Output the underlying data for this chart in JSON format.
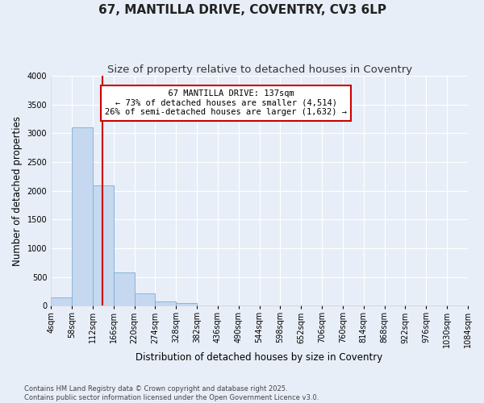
{
  "title_line1": "67, MANTILLA DRIVE, COVENTRY, CV3 6LP",
  "title_line2": "Size of property relative to detached houses in Coventry",
  "xlabel": "Distribution of detached houses by size in Coventry",
  "ylabel": "Number of detached properties",
  "annotation_line1": "67 MANTILLA DRIVE: 137sqm",
  "annotation_line2": "← 73% of detached houses are smaller (4,514)",
  "annotation_line3": "26% of semi-detached houses are larger (1,632) →",
  "bar_edges": [
    4,
    58,
    112,
    166,
    220,
    274,
    328,
    382,
    436,
    490,
    544,
    598,
    652,
    706,
    760,
    814,
    868,
    922,
    976,
    1030,
    1084
  ],
  "bar_heights": [
    150,
    3100,
    2090,
    580,
    210,
    80,
    50,
    0,
    0,
    0,
    0,
    0,
    0,
    0,
    0,
    0,
    0,
    0,
    0,
    0
  ],
  "bar_color": "#c5d8f0",
  "bar_edge_color": "#7aadd4",
  "vline_color": "#cc0000",
  "vline_x": 137,
  "ylim": [
    0,
    4000
  ],
  "yticks": [
    0,
    500,
    1000,
    1500,
    2000,
    2500,
    3000,
    3500,
    4000
  ],
  "background_color": "#e8eef8",
  "plot_bg_color": "#e8eef8",
  "grid_color": "#ffffff",
  "footer": "Contains HM Land Registry data © Crown copyright and database right 2025.\nContains public sector information licensed under the Open Government Licence v3.0.",
  "title_fontsize": 11,
  "subtitle_fontsize": 9.5,
  "tick_fontsize": 7,
  "label_fontsize": 8.5,
  "annot_fontsize": 7.5
}
